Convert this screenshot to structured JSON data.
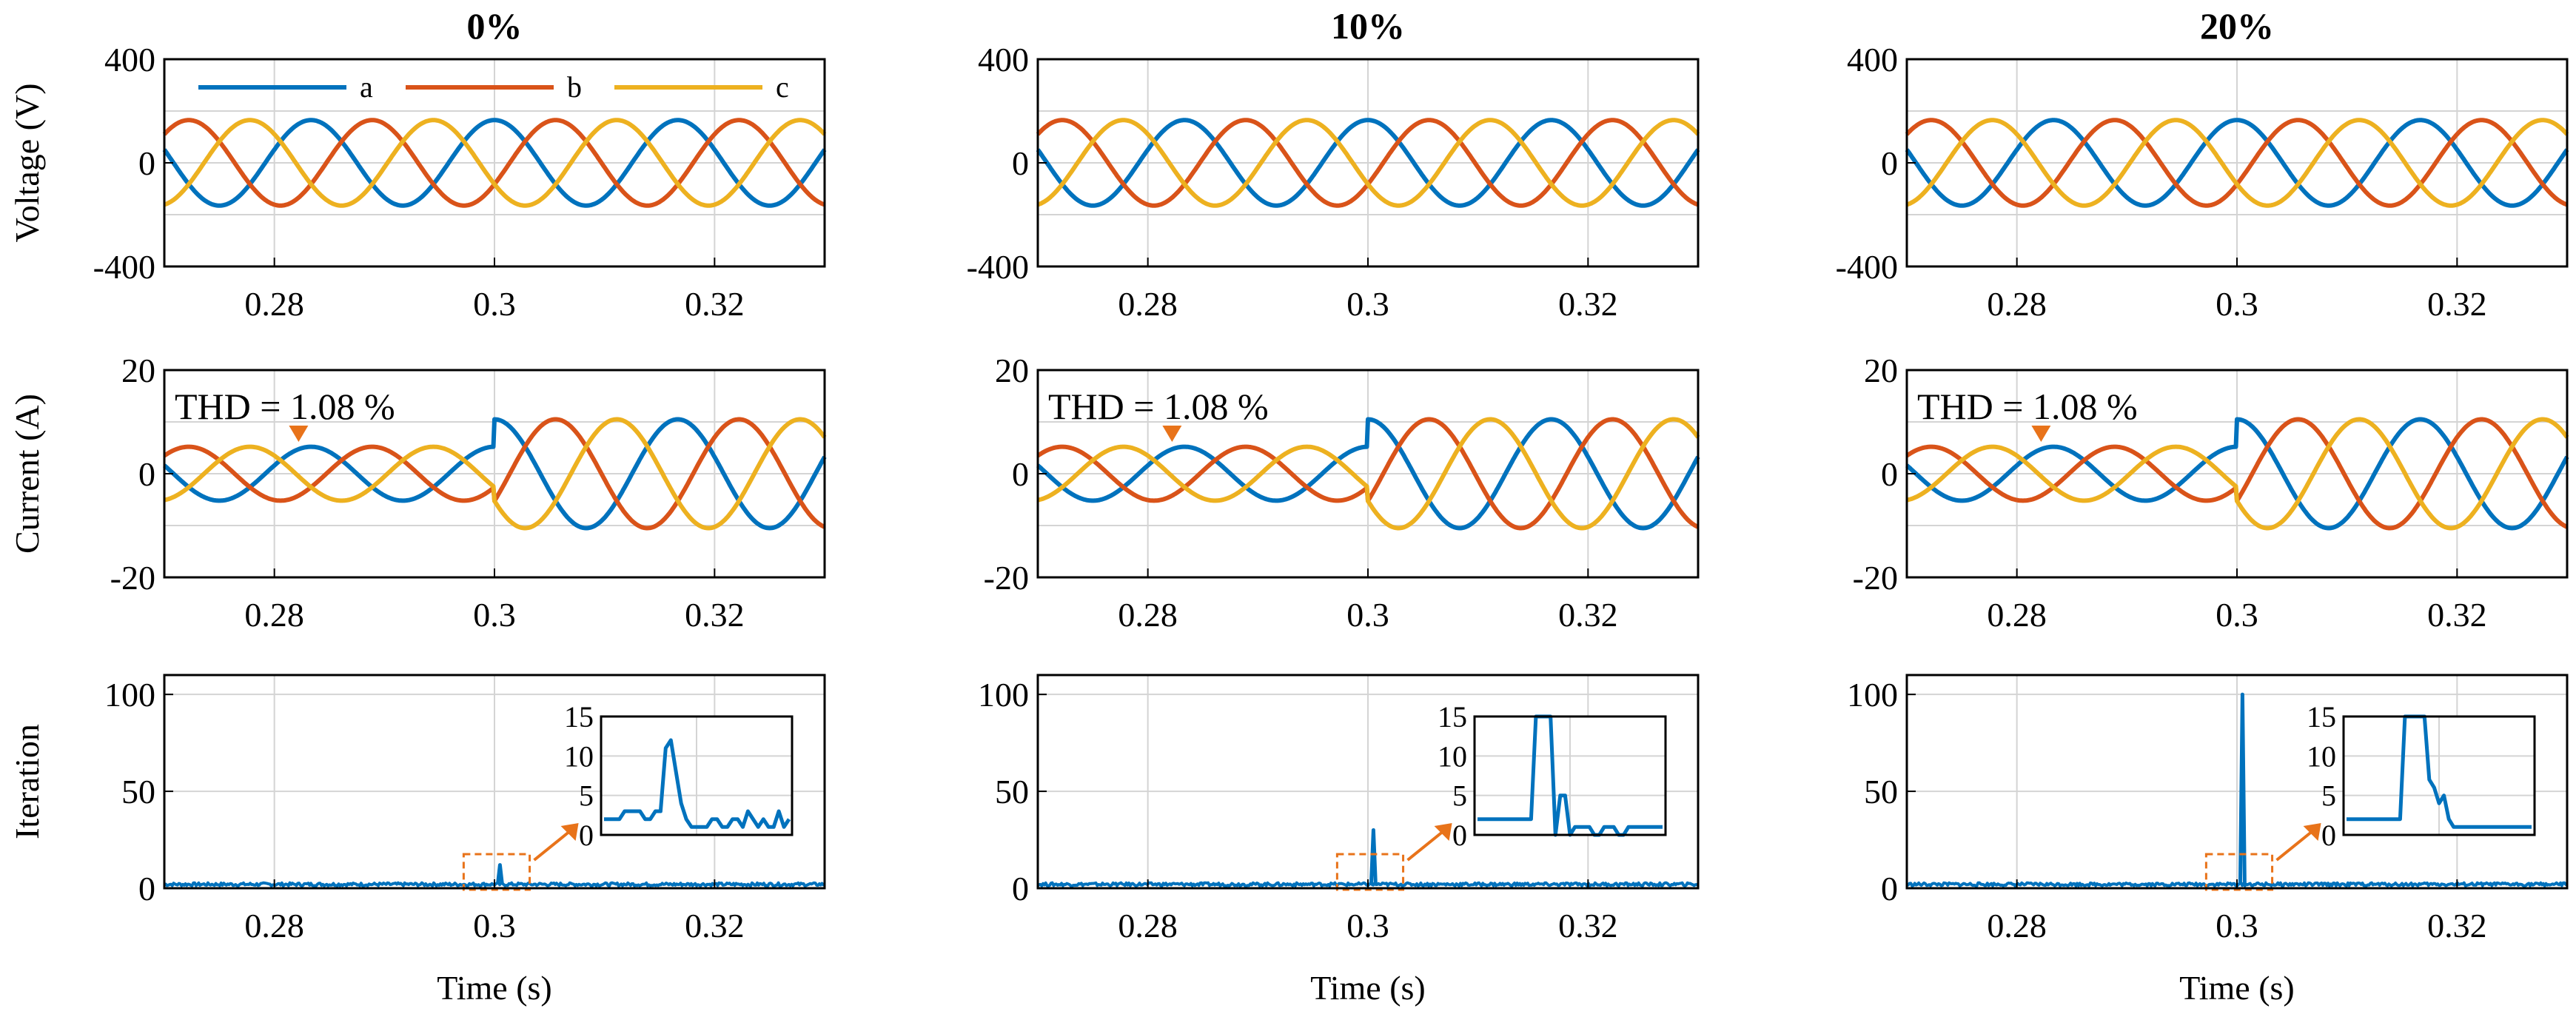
{
  "colors": {
    "a": "#0072BD",
    "b": "#D95319",
    "c": "#EDB120",
    "annotation": "#E8731A",
    "grid": "#d4d4d4"
  },
  "legend": [
    {
      "key": "a",
      "label": "a"
    },
    {
      "key": "b",
      "label": "b"
    },
    {
      "key": "c",
      "label": "c"
    }
  ],
  "chart_data": [
    {
      "type": "line",
      "column_title": "0%",
      "panel": "voltage",
      "ylabel": "Voltage (V)",
      "xlim": [
        0.27,
        0.33
      ],
      "ylim": [
        -400,
        400
      ],
      "xticks": [
        0.28,
        0.3,
        0.32
      ],
      "yticks": [
        -400,
        0,
        400
      ],
      "ygrid": [
        -200,
        0,
        200
      ],
      "grid": true,
      "series": [
        {
          "name": "a",
          "amplitude": 165,
          "frequency_hz": 60,
          "phase_deg": 90
        },
        {
          "name": "b",
          "amplitude": 165,
          "frequency_hz": 60,
          "phase_deg": -30
        },
        {
          "name": "c",
          "amplitude": 165,
          "frequency_hz": 60,
          "phase_deg": 210
        }
      ]
    },
    {
      "type": "line",
      "column_title": "10%",
      "panel": "voltage",
      "ylabel": "",
      "xlim": [
        0.27,
        0.33
      ],
      "ylim": [
        -400,
        400
      ],
      "xticks": [
        0.28,
        0.3,
        0.32
      ],
      "yticks": [
        -400,
        0,
        400
      ],
      "ygrid": [
        -200,
        0,
        200
      ],
      "grid": true,
      "series": [
        {
          "name": "a",
          "amplitude": 165,
          "frequency_hz": 60,
          "phase_deg": 90
        },
        {
          "name": "b",
          "amplitude": 165,
          "frequency_hz": 60,
          "phase_deg": -30
        },
        {
          "name": "c",
          "amplitude": 165,
          "frequency_hz": 60,
          "phase_deg": 210
        }
      ]
    },
    {
      "type": "line",
      "column_title": "20%",
      "panel": "voltage",
      "ylabel": "",
      "xlim": [
        0.27,
        0.33
      ],
      "ylim": [
        -400,
        400
      ],
      "xticks": [
        0.28,
        0.3,
        0.32
      ],
      "yticks": [
        -400,
        0,
        400
      ],
      "ygrid": [
        -200,
        0,
        200
      ],
      "grid": true,
      "series": [
        {
          "name": "a",
          "amplitude": 165,
          "frequency_hz": 60,
          "phase_deg": 90
        },
        {
          "name": "b",
          "amplitude": 165,
          "frequency_hz": 60,
          "phase_deg": -30
        },
        {
          "name": "c",
          "amplitude": 165,
          "frequency_hz": 60,
          "phase_deg": 210
        }
      ]
    },
    {
      "type": "line",
      "column_title": "0%",
      "panel": "current",
      "ylabel": "Current (A)",
      "xlim": [
        0.27,
        0.33
      ],
      "ylim": [
        -20,
        20
      ],
      "xticks": [
        0.28,
        0.3,
        0.32
      ],
      "yticks": [
        -20,
        0,
        20
      ],
      "ygrid": [
        -10,
        0,
        10
      ],
      "grid": true,
      "annotation": {
        "text": "THD = 1.08 %",
        "x": 0.2822,
        "y": 5
      },
      "step_time": 0.3,
      "amplitude_before": 5.2,
      "amplitude_after": 10.5,
      "series": [
        {
          "name": "a",
          "frequency_hz": 60,
          "phase_deg": 90
        },
        {
          "name": "b",
          "frequency_hz": 60,
          "phase_deg": -30
        },
        {
          "name": "c",
          "frequency_hz": 60,
          "phase_deg": 210
        }
      ]
    },
    {
      "type": "line",
      "column_title": "10%",
      "panel": "current",
      "ylabel": "",
      "xlim": [
        0.27,
        0.33
      ],
      "ylim": [
        -20,
        20
      ],
      "xticks": [
        0.28,
        0.3,
        0.32
      ],
      "yticks": [
        -20,
        0,
        20
      ],
      "ygrid": [
        -10,
        0,
        10
      ],
      "grid": true,
      "annotation": {
        "text": "THD = 1.08 %",
        "x": 0.2822,
        "y": 5
      },
      "step_time": 0.3,
      "amplitude_before": 5.2,
      "amplitude_after": 10.5,
      "series": [
        {
          "name": "a",
          "frequency_hz": 60,
          "phase_deg": 90
        },
        {
          "name": "b",
          "frequency_hz": 60,
          "phase_deg": -30
        },
        {
          "name": "c",
          "frequency_hz": 60,
          "phase_deg": 210
        }
      ]
    },
    {
      "type": "line",
      "column_title": "20%",
      "panel": "current",
      "ylabel": "",
      "xlim": [
        0.27,
        0.33
      ],
      "ylim": [
        -20,
        20
      ],
      "xticks": [
        0.28,
        0.3,
        0.32
      ],
      "yticks": [
        -20,
        0,
        20
      ],
      "ygrid": [
        -10,
        0,
        10
      ],
      "grid": true,
      "annotation": {
        "text": "THD = 1.08 %",
        "x": 0.2822,
        "y": 5
      },
      "step_time": 0.3,
      "amplitude_before": 5.2,
      "amplitude_after": 10.5,
      "series": [
        {
          "name": "a",
          "frequency_hz": 60,
          "phase_deg": 90
        },
        {
          "name": "b",
          "frequency_hz": 60,
          "phase_deg": -30
        },
        {
          "name": "c",
          "frequency_hz": 60,
          "phase_deg": 210
        }
      ]
    },
    {
      "type": "line",
      "column_title": "0%",
      "panel": "iteration",
      "ylabel": "Iteration",
      "xlabel": "Time (s)",
      "xlim": [
        0.27,
        0.33
      ],
      "ylim": [
        0,
        110
      ],
      "xticks": [
        0.28,
        0.3,
        0.32
      ],
      "yticks": [
        0,
        50,
        100
      ],
      "grid": true,
      "baseline": 2,
      "spike": {
        "x": 0.3005,
        "y": 12
      },
      "inset": {
        "ylim": [
          0,
          15
        ],
        "yticks": [
          0,
          5,
          10,
          15
        ],
        "values": [
          2,
          2,
          2,
          2,
          3,
          3,
          3,
          3,
          2,
          2,
          3,
          3,
          11,
          12,
          8,
          4,
          2,
          1,
          1,
          1,
          1,
          2,
          2,
          1,
          1,
          2,
          2,
          1,
          3,
          2,
          1,
          2,
          1,
          1,
          3,
          1,
          2
        ]
      }
    },
    {
      "type": "line",
      "column_title": "10%",
      "panel": "iteration",
      "ylabel": "",
      "xlabel": "Time (s)",
      "xlim": [
        0.27,
        0.33
      ],
      "ylim": [
        0,
        110
      ],
      "xticks": [
        0.28,
        0.3,
        0.32
      ],
      "yticks": [
        0,
        50,
        100
      ],
      "grid": true,
      "baseline": 2,
      "spike": {
        "x": 0.3005,
        "y": 30
      },
      "inset": {
        "ylim": [
          0,
          15
        ],
        "yticks": [
          0,
          5,
          10,
          15
        ],
        "values": [
          2,
          2,
          2,
          2,
          2,
          2,
          2,
          2,
          2,
          2,
          2,
          2,
          15,
          15,
          15,
          15,
          0,
          5,
          5,
          0,
          1,
          1,
          1,
          1,
          0,
          0,
          1,
          1,
          1,
          0,
          0,
          1,
          1,
          1,
          1,
          1,
          1,
          1,
          1
        ]
      }
    },
    {
      "type": "line",
      "column_title": "20%",
      "panel": "iteration",
      "ylabel": "",
      "xlabel": "Time (s)",
      "xlim": [
        0.27,
        0.33
      ],
      "ylim": [
        0,
        110
      ],
      "xticks": [
        0.28,
        0.3,
        0.32
      ],
      "yticks": [
        0,
        50,
        100
      ],
      "grid": true,
      "baseline": 2,
      "spike": {
        "x": 0.3005,
        "y": 100
      },
      "inset": {
        "ylim": [
          0,
          15
        ],
        "yticks": [
          0,
          5,
          10,
          15
        ],
        "values": [
          2,
          2,
          2,
          2,
          2,
          2,
          2,
          2,
          2,
          2,
          2,
          2,
          15,
          15,
          15,
          15,
          15,
          7,
          6,
          4,
          5,
          2,
          1,
          1,
          1,
          1,
          1,
          1,
          1,
          1,
          1,
          1,
          1,
          1,
          1,
          1,
          1,
          1,
          1
        ]
      }
    }
  ]
}
